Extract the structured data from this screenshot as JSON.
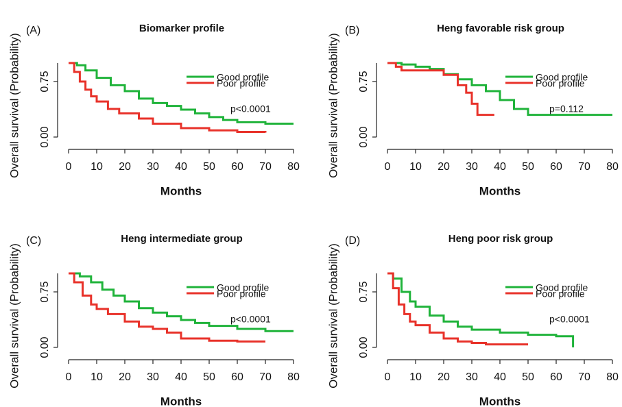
{
  "chart_data": [
    {
      "type": "line",
      "panel_label": "(A)",
      "title": "Biomarker profile",
      "xlabel": "Months",
      "ylabel": "Overall survival (Probability)",
      "annotation": "p<0.0001",
      "legend": "topright",
      "xlim": [
        0,
        80
      ],
      "xticks": [
        0,
        10,
        20,
        30,
        40,
        50,
        60,
        70,
        80
      ],
      "ylim": [
        0,
        1
      ],
      "yticks": [
        {
          "value": 0,
          "label": "0.00"
        },
        {
          "value": 0.75,
          "label": "0.75"
        }
      ],
      "series": [
        {
          "name": "Good profile",
          "color": "#1fb33a",
          "x": [
            0,
            3,
            6,
            10,
            15,
            20,
            25,
            30,
            35,
            40,
            45,
            50,
            55,
            60,
            70,
            80
          ],
          "values": [
            1,
            0.97,
            0.9,
            0.8,
            0.7,
            0.62,
            0.52,
            0.46,
            0.42,
            0.37,
            0.32,
            0.27,
            0.23,
            0.2,
            0.18,
            0.18
          ]
        },
        {
          "name": "Poor profile",
          "color": "#e8322a",
          "x": [
            0,
            2,
            4,
            6,
            8,
            10,
            14,
            18,
            25,
            30,
            40,
            50,
            60,
            70
          ],
          "values": [
            1,
            0.88,
            0.75,
            0.64,
            0.55,
            0.48,
            0.38,
            0.32,
            0.25,
            0.18,
            0.12,
            0.09,
            0.07,
            0.06
          ]
        }
      ]
    },
    {
      "type": "line",
      "panel_label": "(B)",
      "title": "Heng favorable risk group",
      "xlabel": "Months",
      "ylabel": "Overall survival (Probability)",
      "annotation": "p=0.112",
      "legend": "topright",
      "xlim": [
        0,
        80
      ],
      "xticks": [
        0,
        10,
        20,
        30,
        40,
        50,
        60,
        70,
        80
      ],
      "ylim": [
        0,
        1
      ],
      "yticks": [
        {
          "value": 0,
          "label": "0.00"
        },
        {
          "value": 0.75,
          "label": "0.75"
        }
      ],
      "series": [
        {
          "name": "Good profile",
          "color": "#1fb33a",
          "x": [
            0,
            5,
            10,
            15,
            20,
            25,
            30,
            35,
            40,
            45,
            50,
            60,
            80
          ],
          "values": [
            1,
            0.98,
            0.95,
            0.92,
            0.85,
            0.78,
            0.7,
            0.62,
            0.5,
            0.38,
            0.3,
            0.3,
            0.3
          ]
        },
        {
          "name": "Poor profile",
          "color": "#e8322a",
          "x": [
            0,
            3,
            5,
            10,
            20,
            25,
            28,
            30,
            32,
            38
          ],
          "values": [
            1,
            0.95,
            0.9,
            0.9,
            0.84,
            0.7,
            0.6,
            0.45,
            0.3,
            0.3
          ]
        }
      ]
    },
    {
      "type": "line",
      "panel_label": "(C)",
      "title": "Heng intermediate group",
      "xlabel": "Months",
      "ylabel": "Overall survival (Probability)",
      "annotation": "p<0.0001",
      "legend": "topright",
      "xlim": [
        0,
        80
      ],
      "xticks": [
        0,
        10,
        20,
        30,
        40,
        50,
        60,
        70,
        80
      ],
      "ylim": [
        0,
        1
      ],
      "yticks": [
        {
          "value": 0,
          "label": "0.00"
        },
        {
          "value": 0.75,
          "label": "0.75"
        }
      ],
      "series": [
        {
          "name": "Good profile",
          "color": "#1fb33a",
          "x": [
            0,
            4,
            8,
            12,
            16,
            20,
            25,
            30,
            35,
            40,
            45,
            50,
            60,
            70,
            80
          ],
          "values": [
            1,
            0.96,
            0.88,
            0.78,
            0.7,
            0.62,
            0.53,
            0.47,
            0.42,
            0.37,
            0.33,
            0.29,
            0.25,
            0.22,
            0.22
          ]
        },
        {
          "name": "Poor profile",
          "color": "#e8322a",
          "x": [
            0,
            2,
            5,
            8,
            10,
            14,
            20,
            25,
            30,
            35,
            40,
            50,
            60,
            70
          ],
          "values": [
            1,
            0.88,
            0.7,
            0.58,
            0.52,
            0.45,
            0.35,
            0.28,
            0.25,
            0.2,
            0.12,
            0.09,
            0.08,
            0.08
          ]
        }
      ]
    },
    {
      "type": "line",
      "panel_label": "(D)",
      "title": "Heng poor risk group",
      "xlabel": "Months",
      "ylabel": "Overall survival (Probability)",
      "annotation": "p<0.0001",
      "legend": "topright",
      "xlim": [
        0,
        80
      ],
      "xticks": [
        0,
        10,
        20,
        30,
        40,
        50,
        60,
        70,
        80
      ],
      "ylim": [
        0,
        1
      ],
      "yticks": [
        {
          "value": 0,
          "label": "0.00"
        },
        {
          "value": 0.75,
          "label": "0.75"
        }
      ],
      "series": [
        {
          "name": "Good profile",
          "color": "#1fb33a",
          "x": [
            0,
            2,
            5,
            8,
            10,
            15,
            20,
            25,
            30,
            40,
            50,
            60,
            66,
            66
          ],
          "values": [
            1,
            0.93,
            0.75,
            0.62,
            0.55,
            0.43,
            0.35,
            0.28,
            0.24,
            0.2,
            0.17,
            0.15,
            0.15,
            0
          ]
        },
        {
          "name": "Poor profile",
          "color": "#e8322a",
          "x": [
            0,
            2,
            4,
            6,
            8,
            10,
            15,
            20,
            25,
            30,
            35,
            40,
            50
          ],
          "values": [
            1,
            0.8,
            0.58,
            0.45,
            0.35,
            0.3,
            0.2,
            0.12,
            0.08,
            0.06,
            0.04,
            0.04,
            0.04
          ]
        }
      ]
    }
  ]
}
